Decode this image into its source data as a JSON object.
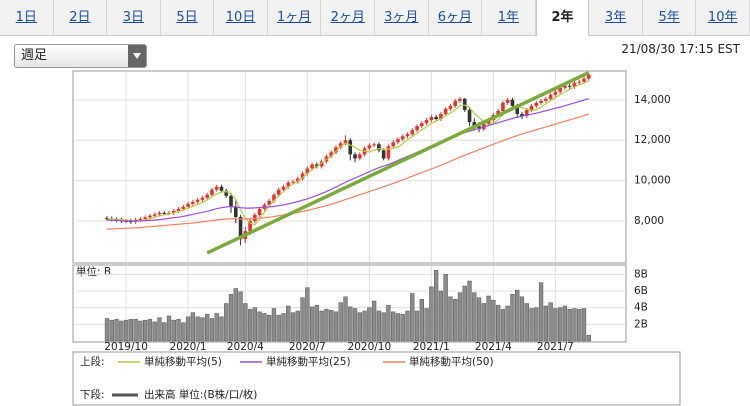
{
  "tabs": [
    {
      "label": "1日"
    },
    {
      "label": "2日"
    },
    {
      "label": "3日"
    },
    {
      "label": "5日"
    },
    {
      "label": "10日"
    },
    {
      "label": "1ヶ月"
    },
    {
      "label": "2ヶ月"
    },
    {
      "label": "3ヶ月"
    },
    {
      "label": "6ヶ月"
    },
    {
      "label": "1年"
    },
    {
      "label": "2年",
      "active": true
    },
    {
      "label": "3年"
    },
    {
      "label": "5年"
    },
    {
      "label": "10年"
    }
  ],
  "period_select": "週足",
  "timestamp": "21/08/30 17:15 EST",
  "chart_data": [
    {
      "type": "candlestick",
      "legend_label": "上段:",
      "up_color": "#e8322a",
      "down_color": "#333333",
      "grid": true,
      "ylim": [
        5970,
        15380
      ],
      "yticks": [
        {
          "value": 8000,
          "label": "8,000"
        },
        {
          "value": 10000,
          "label": "10,000"
        },
        {
          "value": 12000,
          "label": "12,000"
        },
        {
          "value": 14000,
          "label": "14,000"
        }
      ],
      "open": [
        8150,
        8120,
        8080,
        8050,
        7990,
        8000,
        7950,
        8060,
        8100,
        8180,
        8260,
        8330,
        8400,
        8380,
        8400,
        8500,
        8600,
        8700,
        8850,
        8950,
        9050,
        9150,
        9300,
        9550,
        9700,
        9500,
        9250,
        8700,
        8200,
        7100,
        7500,
        8000,
        8300,
        8600,
        8800,
        9000,
        9300,
        9550,
        9700,
        9900,
        9950,
        10100,
        10350,
        10600,
        10800,
        10700,
        10950,
        11200,
        11400,
        11650,
        11850,
        12000,
        11300,
        11100,
        11300,
        11600,
        11750,
        11800,
        11500,
        11100,
        11700,
        11900,
        12050,
        12200,
        12300,
        12500,
        12700,
        12850,
        13000,
        13150,
        13050,
        13300,
        13550,
        13700,
        13950,
        14050,
        13500,
        12900,
        12700,
        12550,
        12800,
        13000,
        13250,
        13450,
        13850,
        14000,
        13700,
        13300,
        13200,
        13500,
        13700,
        13850,
        13950,
        14050,
        14250,
        14400,
        14600,
        14700,
        14650,
        14850,
        14900,
        15050
      ],
      "high": [
        8250,
        8220,
        8180,
        8150,
        8100,
        8100,
        8160,
        8200,
        8280,
        8360,
        8430,
        8500,
        8500,
        8500,
        8600,
        8700,
        8800,
        8950,
        9050,
        9150,
        9250,
        9400,
        9650,
        9800,
        9800,
        9600,
        9400,
        9000,
        8300,
        7700,
        8100,
        8400,
        8700,
        8900,
        9100,
        9400,
        9650,
        9800,
        10000,
        10050,
        10200,
        10450,
        10700,
        10900,
        10900,
        11050,
        11300,
        11500,
        11750,
        11950,
        12250,
        12100,
        11400,
        11400,
        11700,
        11850,
        11900,
        11900,
        11600,
        11800,
        12000,
        12150,
        12300,
        12400,
        12600,
        12800,
        12950,
        13100,
        13250,
        13250,
        13400,
        13650,
        13800,
        14050,
        14150,
        14100,
        13600,
        13100,
        12900,
        12900,
        13100,
        13350,
        13550,
        13950,
        14100,
        14100,
        13800,
        13400,
        13600,
        13800,
        13950,
        14050,
        14150,
        14350,
        14500,
        14700,
        14800,
        14800,
        14950,
        15000,
        15150,
        15350
      ],
      "low": [
        8020,
        7980,
        7950,
        7890,
        7890,
        7850,
        7850,
        7960,
        8000,
        8080,
        8160,
        8230,
        8280,
        8280,
        8300,
        8400,
        8500,
        8600,
        8750,
        8850,
        8950,
        9050,
        9200,
        9450,
        9400,
        9150,
        8400,
        7900,
        6800,
        6900,
        7300,
        7900,
        8200,
        8500,
        8700,
        8900,
        9200,
        9450,
        9600,
        9800,
        9850,
        10000,
        10250,
        10500,
        10600,
        10600,
        10850,
        11100,
        11300,
        11550,
        11750,
        11000,
        10900,
        11000,
        11200,
        11500,
        11650,
        11400,
        11000,
        11000,
        11600,
        11800,
        11950,
        12100,
        12200,
        12400,
        12600,
        12750,
        12900,
        12950,
        12950,
        13200,
        13450,
        13600,
        13850,
        13400,
        12700,
        12500,
        12400,
        12450,
        12700,
        12900,
        13150,
        13350,
        13750,
        13600,
        13100,
        13050,
        13100,
        13400,
        13600,
        13750,
        13850,
        13950,
        14150,
        14300,
        14500,
        14550,
        14550,
        14750,
        14800,
        14950
      ],
      "close": [
        8120,
        8080,
        8050,
        7990,
        8000,
        7950,
        8060,
        8100,
        8180,
        8260,
        8330,
        8400,
        8380,
        8400,
        8500,
        8600,
        8700,
        8850,
        8950,
        9050,
        9150,
        9300,
        9550,
        9700,
        9500,
        9250,
        8700,
        8200,
        7100,
        7500,
        8000,
        8300,
        8600,
        8800,
        9000,
        9300,
        9550,
        9700,
        9900,
        9950,
        10100,
        10350,
        10600,
        10800,
        10700,
        10950,
        11200,
        11400,
        11650,
        11850,
        12000,
        11300,
        11100,
        11300,
        11600,
        11750,
        11800,
        11500,
        11100,
        11700,
        11900,
        12050,
        12200,
        12300,
        12500,
        12700,
        12850,
        13000,
        13150,
        13050,
        13300,
        13550,
        13700,
        13950,
        14050,
        13500,
        12900,
        12700,
        12550,
        12800,
        13000,
        13250,
        13450,
        13850,
        14000,
        13700,
        13300,
        13200,
        13500,
        13700,
        13850,
        13950,
        14050,
        14250,
        14400,
        14600,
        14700,
        14650,
        14850,
        14900,
        15050,
        15250
      ],
      "series": [
        {
          "name": "単純移動平均(5)",
          "color": "#b5cc3e",
          "values": [
            8100,
            8100,
            8090,
            8070,
            8050,
            8010,
            8010,
            8020,
            8060,
            8110,
            8190,
            8250,
            8310,
            8350,
            8400,
            8470,
            8540,
            8630,
            8720,
            8820,
            8920,
            9050,
            9200,
            9350,
            9440,
            9460,
            9340,
            9070,
            8550,
            8150,
            7900,
            7820,
            8100,
            8440,
            8740,
            9000,
            9250,
            9460,
            9690,
            9820,
            9980,
            10150,
            10350,
            10560,
            10700,
            10870,
            11050,
            11210,
            11450,
            11700,
            11850,
            11760,
            11660,
            11500,
            11460,
            11420,
            11510,
            11590,
            11550,
            11570,
            11610,
            11660,
            11830,
            12030,
            12190,
            12350,
            12510,
            12670,
            12840,
            12950,
            13070,
            13210,
            13350,
            13510,
            13710,
            13740,
            13620,
            13330,
            13130,
            12890,
            12790,
            12860,
            13010,
            13270,
            13510,
            13650,
            13660,
            13610,
            13540,
            13480,
            13510,
            13640,
            13810,
            13960,
            14100,
            14260,
            14400,
            14520,
            14650,
            14740,
            14830,
            14950
          ]
        },
        {
          "name": "単純移動平均(25)",
          "color": "#9b4fd6",
          "values": [
            8050,
            8040,
            8030,
            8020,
            8010,
            8000,
            8000,
            8010,
            8020,
            8030,
            8050,
            8070,
            8100,
            8130,
            8160,
            8190,
            8230,
            8280,
            8330,
            8380,
            8430,
            8480,
            8540,
            8610,
            8660,
            8700,
            8710,
            8700,
            8660,
            8640,
            8640,
            8650,
            8670,
            8680,
            8700,
            8720,
            8760,
            8800,
            8850,
            8900,
            8960,
            9030,
            9100,
            9180,
            9270,
            9360,
            9460,
            9570,
            9680,
            9800,
            9920,
            10030,
            10130,
            10230,
            10330,
            10440,
            10540,
            10640,
            10720,
            10800,
            10890,
            11000,
            11100,
            11200,
            11300,
            11400,
            11500,
            11600,
            11700,
            11800,
            11900,
            12000,
            12100,
            12200,
            12300,
            12380,
            12450,
            12520,
            12590,
            12660,
            12730,
            12800,
            12870,
            12940,
            13010,
            13080,
            13140,
            13190,
            13240,
            13290,
            13340,
            13400,
            13460,
            13520,
            13580,
            13640,
            13710,
            13780,
            13850,
            13920,
            13990,
            14060
          ]
        },
        {
          "name": "単純移動平均(50)",
          "color": "#f08060",
          "values": [
            7600,
            7610,
            7620,
            7630,
            7640,
            7650,
            7660,
            7680,
            7700,
            7720,
            7740,
            7760,
            7780,
            7800,
            7820,
            7840,
            7860,
            7880,
            7900,
            7930,
            7960,
            7990,
            8020,
            8050,
            8080,
            8100,
            8110,
            8110,
            8100,
            8100,
            8110,
            8120,
            8140,
            8160,
            8190,
            8220,
            8260,
            8300,
            8340,
            8380,
            8420,
            8470,
            8520,
            8580,
            8640,
            8700,
            8760,
            8830,
            8900,
            8980,
            9060,
            9140,
            9220,
            9300,
            9380,
            9460,
            9540,
            9620,
            9700,
            9780,
            9860,
            9950,
            10040,
            10130,
            10220,
            10310,
            10400,
            10490,
            10580,
            10670,
            10760,
            10860,
            10960,
            11060,
            11160,
            11260,
            11350,
            11440,
            11530,
            11620,
            11710,
            11800,
            11890,
            11980,
            12070,
            12150,
            12230,
            12310,
            12380,
            12450,
            12520,
            12590,
            12660,
            12730,
            12800,
            12870,
            12940,
            13010,
            13080,
            13150,
            13220,
            13300
          ]
        }
      ],
      "trendline": {
        "color": "#7aab3c",
        "x": [
          21,
          101
        ],
        "values": [
          6420,
          15350
        ]
      }
    },
    {
      "type": "bar",
      "legend_label": "下段:",
      "unit_label": "単位: B",
      "color": "#8c8c8c",
      "grid": true,
      "ylim": [
        0,
        9
      ],
      "yticks": [
        {
          "value": 2,
          "label": "2B"
        },
        {
          "value": 4,
          "label": "4B"
        },
        {
          "value": 6,
          "label": "6B"
        },
        {
          "value": 8,
          "label": "8B"
        }
      ],
      "categories": [
        null,
        null,
        null,
        null,
        "2019/10",
        null,
        null,
        null,
        null,
        null,
        null,
        null,
        null,
        null,
        null,
        null,
        null,
        "2020/1",
        null,
        null,
        null,
        null,
        null,
        null,
        null,
        null,
        null,
        null,
        null,
        "2020/4",
        null,
        null,
        null,
        null,
        null,
        null,
        null,
        null,
        null,
        null,
        null,
        null,
        "2020/7",
        null,
        null,
        null,
        null,
        null,
        null,
        null,
        null,
        null,
        null,
        null,
        null,
        "2020/10",
        null,
        null,
        null,
        null,
        null,
        null,
        null,
        null,
        null,
        null,
        null,
        null,
        "2021/1",
        null,
        null,
        null,
        null,
        null,
        null,
        null,
        null,
        null,
        null,
        null,
        null,
        "2021/4",
        null,
        null,
        null,
        null,
        null,
        null,
        null,
        null,
        null,
        null,
        null,
        null,
        "2021/7",
        null,
        null,
        null,
        null,
        null,
        null,
        null
      ],
      "series": [
        {
          "name": "出来高 単位:(B株/口/枚)",
          "color": "#555555",
          "values": [
            2.7,
            2.5,
            2.6,
            2.4,
            2.5,
            2.6,
            2.6,
            2.4,
            2.5,
            2.6,
            2.3,
            2.8,
            2.2,
            3.0,
            2.5,
            2.6,
            2.2,
            2.9,
            3.4,
            2.9,
            2.8,
            3.2,
            2.7,
            3.3,
            2.9,
            4.5,
            5.6,
            6.3,
            5.9,
            4.5,
            3.8,
            4.0,
            3.5,
            3.3,
            3.1,
            3.9,
            3.1,
            3.3,
            4.2,
            3.4,
            3.6,
            5.2,
            6.4,
            4.1,
            4.3,
            3.6,
            3.8,
            3.7,
            3.5,
            4.6,
            5.3,
            4.1,
            3.9,
            3.4,
            3.6,
            4.0,
            4.8,
            3.6,
            3.4,
            4.3,
            3.5,
            3.3,
            3.2,
            3.6,
            5.7,
            3.6,
            5.0,
            3.9,
            6.5,
            8.5,
            6.0,
            8.0,
            5.3,
            5.0,
            5.8,
            6.6,
            7.2,
            5.8,
            5.2,
            4.5,
            5.4,
            4.9,
            4.3,
            3.8,
            4.2,
            5.6,
            6.1,
            5.3,
            4.5,
            3.9,
            4.0,
            7.0,
            4.2,
            4.6,
            3.9,
            4.0,
            4.2,
            3.8,
            3.9,
            3.8,
            3.9,
            0.7
          ]
        }
      ]
    }
  ]
}
